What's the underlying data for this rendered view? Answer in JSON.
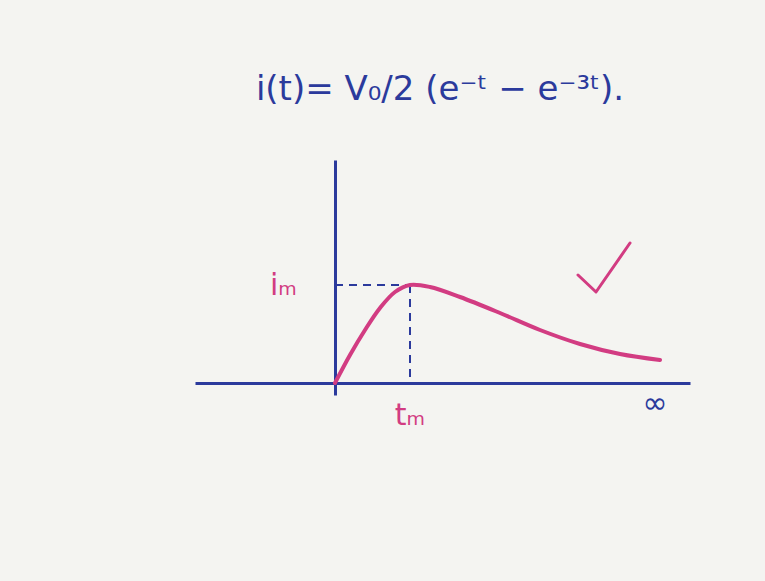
{
  "chart_data": {
    "type": "line",
    "title": "i(t)= V₀/2 (e⁻ᵗ − e⁻³ᵗ).",
    "x": [
      0,
      0.15,
      0.3,
      0.45,
      0.6,
      0.75,
      0.95,
      1.25,
      1.65,
      2.05,
      2.45,
      2.85,
      3.25
    ],
    "series": [
      {
        "name": "i(t)",
        "color": "#d23c82",
        "values": [
          0,
          0.28,
          0.53,
          0.75,
          0.91,
          0.98,
          0.96,
          0.86,
          0.7,
          0.53,
          0.39,
          0.29,
          0.23
        ]
      }
    ],
    "xlim": [
      -1.4,
      3.55
    ],
    "ylim": [
      -0.12,
      2.23
    ],
    "xticks": [],
    "yticks": [],
    "tick_labels": false,
    "grid": false,
    "annotations": [
      {
        "text": "iₘ",
        "x": 0,
        "y": 0.98
      },
      {
        "text": "tₘ",
        "x": 0.75,
        "y": 0
      },
      {
        "text": "∞",
        "x": 3.2,
        "y": 0
      }
    ]
  }
}
